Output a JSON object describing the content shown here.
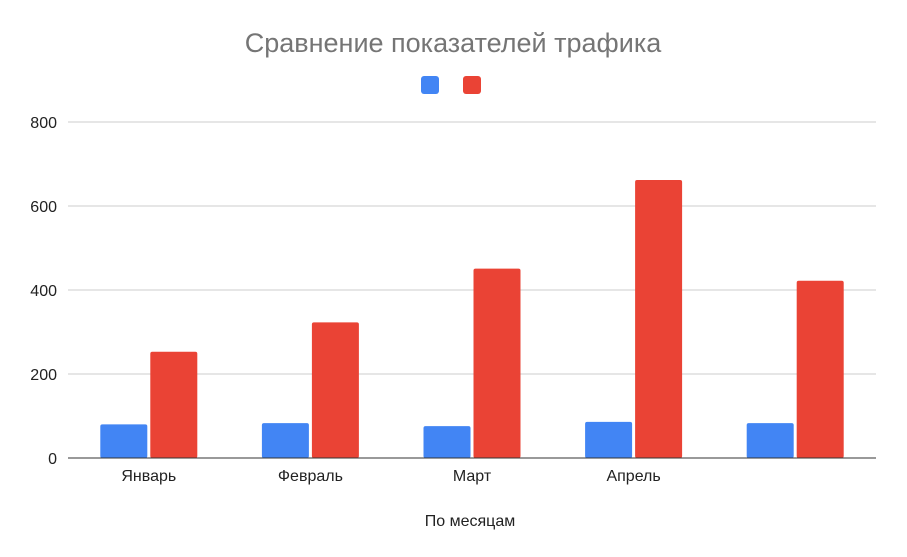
{
  "chart_data": {
    "type": "bar",
    "title": "Сравнение показателей трафика",
    "xlabel": "По месяцам",
    "ylabel": "",
    "categories": [
      "Январь",
      "Февраль",
      "Март",
      "Апрель",
      ""
    ],
    "series": [
      {
        "color": "#4285f4",
        "values": [
          80,
          83,
          76,
          86,
          83
        ]
      },
      {
        "color": "#ea4335",
        "values": [
          253,
          323,
          451,
          662,
          422
        ]
      }
    ],
    "ylim": [
      0,
      800
    ],
    "yticks": [
      0,
      200,
      400,
      600,
      800
    ],
    "grid": true,
    "legend": "top"
  }
}
